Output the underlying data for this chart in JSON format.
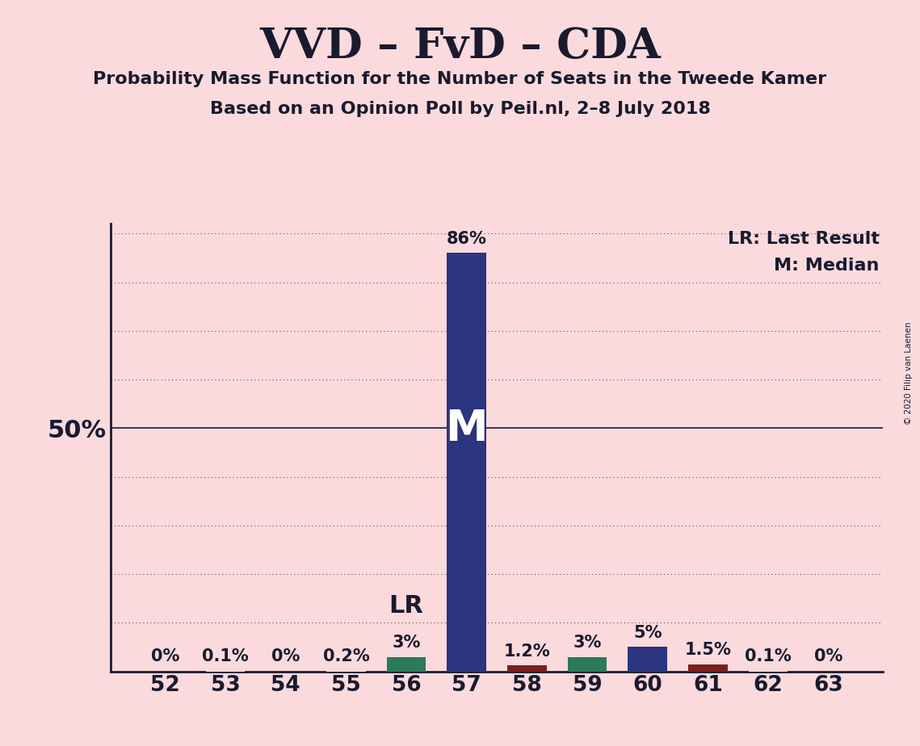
{
  "title": "VVD – FvD – CDA",
  "subtitle1": "Probability Mass Function for the Number of Seats in the Tweede Kamer",
  "subtitle2": "Based on an Opinion Poll by Peil.nl, 2–8 July 2018",
  "copyright": "© 2020 Filip van Laenen",
  "categories": [
    52,
    53,
    54,
    55,
    56,
    57,
    58,
    59,
    60,
    61,
    62,
    63
  ],
  "values": [
    0.0,
    0.1,
    0.0,
    0.2,
    3.0,
    86.0,
    1.2,
    3.0,
    5.0,
    1.5,
    0.1,
    0.0
  ],
  "labels": [
    "0%",
    "0.1%",
    "0%",
    "0.2%",
    "3%",
    "86%",
    "1.2%",
    "3%",
    "5%",
    "1.5%",
    "0.1%",
    "0%"
  ],
  "bar_colors": [
    "#fadadd",
    "#fadadd",
    "#fadadd",
    "#fadadd",
    "#2b7a5c",
    "#2b3580",
    "#7a1e1e",
    "#2b7a5c",
    "#2b3580",
    "#7a1e1e",
    "#fadadd",
    "#fadadd"
  ],
  "median_seat": 57,
  "last_result_seat": 56,
  "background_color": "#fadadd",
  "ylim_max": 92,
  "grid_yticks": [
    10,
    20,
    30,
    40,
    50,
    60,
    70,
    80,
    90
  ],
  "solid_ytick": 50,
  "ylabel_50": "50%",
  "bar_width": 0.65,
  "legend_lr": "LR: Last Result",
  "legend_m": "M: Median",
  "M_label": "M",
  "LR_label": "LR"
}
